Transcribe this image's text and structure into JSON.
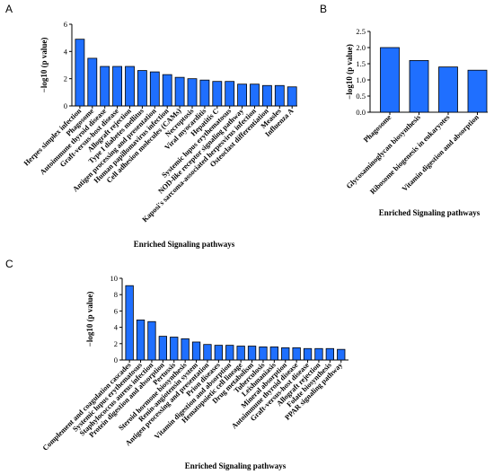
{
  "chart_data": [
    {
      "panel": "A",
      "type": "bar",
      "xlabel": "Enriched Signaling  pathways",
      "ylabel": "−log10 (p value)",
      "ylim": [
        0,
        6
      ],
      "yticks": [
        0,
        2,
        4,
        6
      ],
      "bar_color": "#1f6fff",
      "categories": [
        "Herpes simplex infection",
        "Phagosome",
        "Autoimmune thyroid disease",
        "Graft-versus-host disease",
        "Allograft rejection",
        "Type I diabetes mellitus",
        "Antigen processing and presentation",
        "Human papillomavirus infection",
        "Cell adhesion molecules (CAMs)",
        "Necroptosis",
        "Viral myocarditis",
        "Hepatitis C",
        "Systemic lupus erythematosus",
        "NOD-like receptor signaling pathway",
        "Kaposi's sarcoma-associated herpesvirus infection",
        "Osteoclast differentiation",
        "Measles",
        "Influenza A"
      ],
      "values": [
        4.9,
        3.5,
        2.9,
        2.9,
        2.9,
        2.6,
        2.5,
        2.3,
        2.1,
        2.0,
        1.9,
        1.8,
        1.8,
        1.6,
        1.6,
        1.5,
        1.5,
        1.4
      ]
    },
    {
      "panel": "B",
      "type": "bar",
      "xlabel": "Enriched Signaling  pathways",
      "ylabel": "−log10 (p value)",
      "ylim": [
        0,
        2.5
      ],
      "yticks": [
        0.0,
        0.5,
        1.0,
        1.5,
        2.0,
        2.5
      ],
      "bar_color": "#1f6fff",
      "categories": [
        "Phagosome",
        "Glycosaminoglycan biosynthesis",
        "Ribosome biogenesis in eukaryotes",
        "Vitamin digestion and absorption"
      ],
      "values": [
        2.0,
        1.6,
        1.4,
        1.3
      ]
    },
    {
      "panel": "C",
      "type": "bar",
      "xlabel": "Enriched Signaling  pathways",
      "ylabel": "−log10 (p value)",
      "ylim": [
        0,
        10
      ],
      "yticks": [
        0,
        2,
        4,
        6,
        8,
        10
      ],
      "bar_color": "#1f6fff",
      "categories": [
        "Complement and coagulation cascades",
        "Systemic lupus erythematosus",
        "Staphylococcus aureus infection",
        "Protein digestion and absorption",
        "Pertussis",
        "Steroid hormone biosynthesis",
        "Renin-angiotensin system",
        "Antigen processing and presentation",
        "Prion diseases",
        "Vitamin digestion and absorption",
        "Hematopoietic cell lineage",
        "Drug metabolism",
        "Tuberculosis",
        "Leishmaniasis",
        "Mineral absorption",
        "Autoimmune thyroid disease",
        "Graft-versus-host disease",
        "Allograft rejection",
        "Folate biosynthesis",
        "PPAR signaling pathway"
      ],
      "values": [
        9.1,
        4.9,
        4.7,
        2.9,
        2.8,
        2.6,
        2.2,
        1.9,
        1.8,
        1.8,
        1.7,
        1.7,
        1.6,
        1.6,
        1.5,
        1.5,
        1.4,
        1.4,
        1.4,
        1.3
      ]
    }
  ]
}
